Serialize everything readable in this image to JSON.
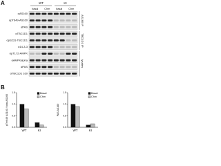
{
  "panel_a": {
    "label": "A",
    "groups": [
      {
        "name": "WT",
        "conditions": [
          "basal",
          "Chm"
        ]
      },
      {
        "name": "KI",
        "conditions": [
          "basal",
          "Chm"
        ]
      }
    ],
    "rows": [
      "αAS160",
      "αpT649-AS160",
      "αPAS",
      "αTBC1D1",
      "αpS231-TBC1D1",
      "α14-3-3",
      "αpT172-AMPK",
      "αAMPKalpha",
      "αPAS",
      "αTBC1D1 160"
    ],
    "sections": [
      "AS160 IP",
      "TBC1D1 IP",
      "lysates"
    ]
  },
  "panel_b": {
    "label": "B",
    "charts": [
      {
        "type": "bar",
        "y_label": "pThr649 AS160 / total AS160",
        "categories": [
          "WT",
          "KI"
        ],
        "series": [
          {
            "name": "Basal",
            "color": "#111111",
            "values": [
              1.0,
              0.2
            ]
          },
          {
            "name": "Chm",
            "color": "#bbbbbb",
            "values": [
              0.8,
              0.1
            ]
          }
        ],
        "ylim": [
          0,
          1.5
        ],
        "yticks": [
          {
            "value": 0,
            "label": "0.0"
          },
          {
            "value": 0.5,
            "label": "0.5"
          },
          {
            "value": 1,
            "label": "1.0"
          },
          {
            "value": 1.5,
            "label": "1.5"
          }
        ]
      },
      {
        "type": "bar",
        "y_label": "PAS AS160",
        "categories": [
          "WT",
          "KI"
        ],
        "series": [
          {
            "name": "Basal",
            "color": "#111111",
            "values": [
              1.0,
              0.1
            ]
          },
          {
            "name": "Chm",
            "color": "#bbbbbb",
            "values": [
              0.9,
              0.15
            ]
          }
        ],
        "ylim": [
          0,
          1.5
        ],
        "yticks": [
          {
            "value": 0,
            "label": "0.0"
          },
          {
            "value": 0.5,
            "label": "0.5"
          },
          {
            "value": 1,
            "label": "1.0"
          },
          {
            "value": 1.5,
            "label": "1.5"
          }
        ]
      }
    ]
  }
}
